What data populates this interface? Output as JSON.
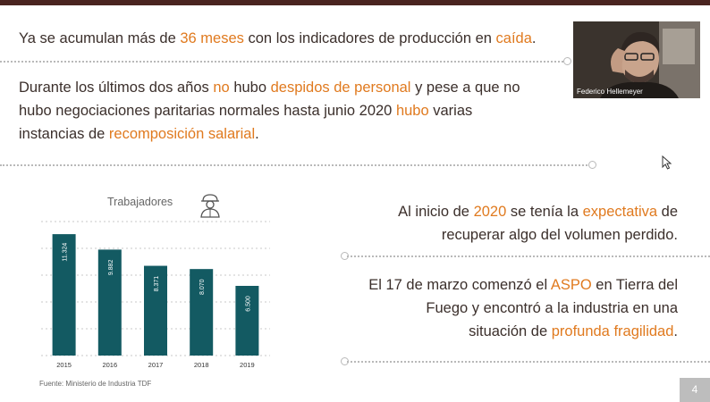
{
  "line1": {
    "t1": "Ya se acumulan más de ",
    "h1": "36 meses",
    "t2": " con los indicadores de producción en ",
    "h2": "caída",
    "t3": "."
  },
  "para2": {
    "l1a": "Durante los últimos dos años ",
    "l1h1": "no",
    "l1b": " hubo ",
    "l1h2": "despidos de personal",
    "l1c": " y pese a que no",
    "l2a": "hubo negociaciones paritarias normales hasta junio 2020 ",
    "l2h": "hubo",
    "l2b": " varias",
    "l3a": "instancias de ",
    "l3h": "recomposición salarial",
    "l3b": "."
  },
  "right1": {
    "l1a": "Al inicio de ",
    "l1h1": "2020",
    "l1b": " se tenía la ",
    "l1h2": "expectativa",
    "l1c": " de",
    "l2": "recuperar algo del volumen perdido."
  },
  "right2": {
    "l1a": "El 17 de marzo comenzó el ",
    "l1h": "ASPO",
    "l1b": " en Tierra del",
    "l2": "Fuego y encontró a la industria en una",
    "l3a": "situación de ",
    "l3h": "profunda fragilidad",
    "l3b": "."
  },
  "video": {
    "participant_name": "Federico Hellemeyer"
  },
  "source_note": "Fuente: Ministerio de Industria TDF",
  "page_number": "4",
  "colors": {
    "highlight": "#e07a1f",
    "bar": "#135a62",
    "topbar": "#4a2420"
  },
  "icons": {
    "chart_icon": "worker-icon",
    "cursor": "mouse-pointer-icon"
  },
  "chart_data": {
    "type": "bar",
    "title": "Trabajadores",
    "categories": [
      "2015",
      "2016",
      "2017",
      "2018",
      "2019"
    ],
    "values": [
      11324,
      9882,
      8371,
      8070,
      6500
    ],
    "value_labels": [
      "11.324",
      "9.882",
      "8.371",
      "8.070",
      "6.500"
    ],
    "ylim": [
      0,
      12500
    ],
    "grid": true,
    "legend": "none"
  }
}
